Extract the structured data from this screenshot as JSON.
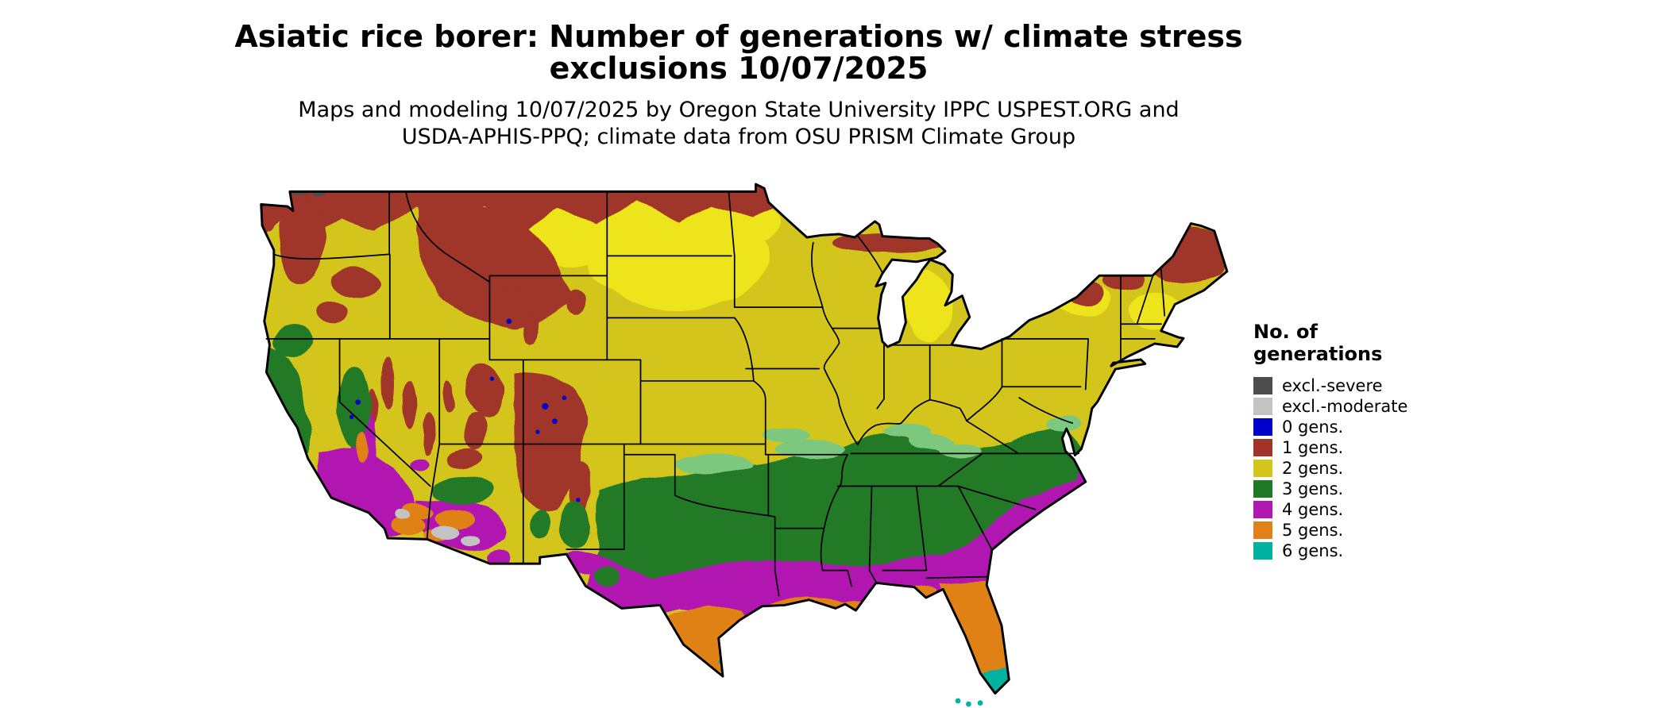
{
  "title": {
    "line1": "Asiatic rice borer: Number of generations w/ climate stress",
    "line2": "exclusions 10/07/2025"
  },
  "subtitle": {
    "line1": "Maps and modeling 10/07/2025 by Oregon State University IPPC USPEST.ORG and",
    "line2": "USDA-APHIS-PPQ; climate data from OSU PRISM Climate Group"
  },
  "legend": {
    "title_line1": "No. of",
    "title_line2": "generations",
    "items": [
      {
        "label": "excl.-severe",
        "color": "#4d4d4d"
      },
      {
        "label": "excl.-moderate",
        "color": "#c3c3c3"
      },
      {
        "label": "0 gens.",
        "color": "#0000cd"
      },
      {
        "label": "1 gens.",
        "color": "#a0342a"
      },
      {
        "label": "2 gens.",
        "color": "#d4c51c"
      },
      {
        "label": "3 gens.",
        "color": "#207a25"
      },
      {
        "label": "4 gens.",
        "color": "#b118b1"
      },
      {
        "label": "5 gens.",
        "color": "#e08119"
      },
      {
        "label": "6 gens.",
        "color": "#00b2a2"
      }
    ]
  },
  "map": {
    "region_name": "conterminous United States",
    "colors": {
      "excl_severe": "#4d4d4d",
      "excl_moderate": "#c3c3c3",
      "gen0": "#0000cd",
      "gen1": "#a0342a",
      "gen2": "#d4c51c",
      "gen2_bright": "#ede41a",
      "gen3": "#207a25",
      "gen3_light": "#7cc87f",
      "gen4": "#b118b1",
      "gen5": "#e08119",
      "gen6": "#00b2a2",
      "border": "#000000"
    }
  }
}
